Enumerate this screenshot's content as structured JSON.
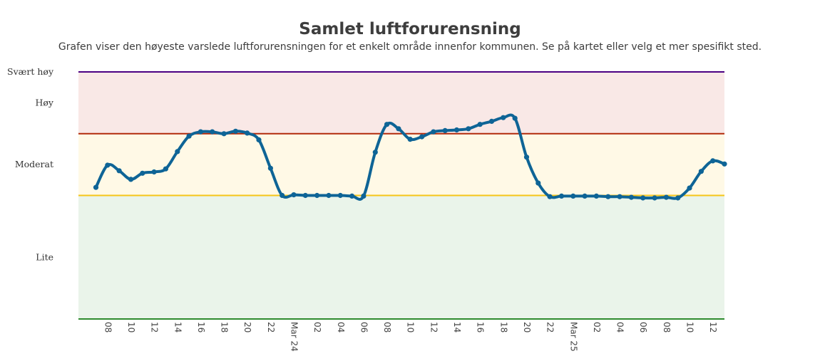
{
  "chart": {
    "title": "Samlet luftforurensning",
    "subtitle": "Grafen viser den høyeste varslede luftforurensningen for et enkelt område innenfor kommunen. Se på kartet eller velg et mer spesifikt sted."
  },
  "chart_data": {
    "type": "line",
    "title": "Samlet luftforurensning",
    "subtitle": "Grafen viser den høyeste varslede luftforurensningen for et enkelt område innenfor kommunen. Se på kartet eller velg et mer spesifikt sted.",
    "x_unit": "hours, starting Mar 23 07:00 (x = 0)",
    "x_tick_labels": [
      {
        "x": 1,
        "label": "08"
      },
      {
        "x": 3,
        "label": "10"
      },
      {
        "x": 5,
        "label": "12"
      },
      {
        "x": 7,
        "label": "14"
      },
      {
        "x": 9,
        "label": "16"
      },
      {
        "x": 11,
        "label": "18"
      },
      {
        "x": 13,
        "label": "20"
      },
      {
        "x": 15,
        "label": "22"
      },
      {
        "x": 17,
        "label": "Mar 24"
      },
      {
        "x": 19,
        "label": "02"
      },
      {
        "x": 21,
        "label": "04"
      },
      {
        "x": 23,
        "label": "06"
      },
      {
        "x": 25,
        "label": "08"
      },
      {
        "x": 27,
        "label": "10"
      },
      {
        "x": 29,
        "label": "12"
      },
      {
        "x": 31,
        "label": "14"
      },
      {
        "x": 33,
        "label": "16"
      },
      {
        "x": 35,
        "label": "18"
      },
      {
        "x": 37,
        "label": "20"
      },
      {
        "x": 39,
        "label": "22"
      },
      {
        "x": 41,
        "label": "Mar 25"
      },
      {
        "x": 43,
        "label": "02"
      },
      {
        "x": 45,
        "label": "04"
      },
      {
        "x": 47,
        "label": "06"
      },
      {
        "x": 49,
        "label": "08"
      },
      {
        "x": 51,
        "label": "10"
      },
      {
        "x": 53,
        "label": "12"
      }
    ],
    "x_range": [
      -1.5,
      54
    ],
    "y_range": [
      0,
      4
    ],
    "bands": [
      {
        "label": "Lite",
        "from": 0,
        "to": 2,
        "fill": "#eaf4ea",
        "line": "#2e8b2e"
      },
      {
        "label": "Moderat",
        "from": 2,
        "to": 3,
        "fill": "#fff9e6",
        "line": "#f5c518"
      },
      {
        "label": "Høy",
        "from": 3,
        "to": 4,
        "fill": "#f9e8e6",
        "line": "#b22b0c"
      },
      {
        "label": "Svært høy",
        "from": 4,
        "to": 4,
        "fill": "none",
        "line": "#4b0082"
      }
    ],
    "series": [
      {
        "color": "#0e6496",
        "x": [
          0,
          1,
          2,
          3,
          4,
          5,
          6,
          7,
          8,
          9,
          10,
          11,
          12,
          13,
          14,
          15,
          16,
          17,
          18,
          19,
          20,
          21,
          22,
          23,
          24,
          25,
          26,
          27,
          28,
          29,
          30,
          31,
          32,
          33,
          34,
          35,
          36,
          37,
          38,
          39,
          40,
          41,
          42,
          43,
          44,
          45,
          46,
          47,
          48,
          49,
          50,
          51,
          52,
          53,
          54
        ],
        "y": [
          2.13,
          2.49,
          2.4,
          2.26,
          2.36,
          2.38,
          2.43,
          2.71,
          2.96,
          3.03,
          3.03,
          3.0,
          3.04,
          3.01,
          2.9,
          2.44,
          2.0,
          2.01,
          2.0,
          2.0,
          2.0,
          2.0,
          1.99,
          1.99,
          2.7,
          3.15,
          3.08,
          2.91,
          2.95,
          3.03,
          3.05,
          3.06,
          3.08,
          3.15,
          3.2,
          3.26,
          3.25,
          2.62,
          2.2,
          1.98,
          1.99,
          1.99,
          1.99,
          1.99,
          1.98,
          1.98,
          1.97,
          1.96,
          1.96,
          1.97,
          1.96,
          2.12,
          2.39,
          2.56,
          2.51
        ]
      }
    ]
  }
}
